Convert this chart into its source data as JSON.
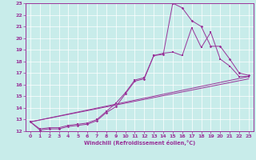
{
  "xlabel": "Windchill (Refroidissement éolien,°C)",
  "bg_color": "#c8ecea",
  "line_color": "#993399",
  "grid_color": "#ffffff",
  "xlim": [
    -0.5,
    23.5
  ],
  "ylim": [
    12,
    23
  ],
  "xticks": [
    0,
    1,
    2,
    3,
    4,
    5,
    6,
    7,
    8,
    9,
    10,
    11,
    12,
    13,
    14,
    15,
    16,
    17,
    18,
    19,
    20,
    21,
    22,
    23
  ],
  "yticks": [
    12,
    13,
    14,
    15,
    16,
    17,
    18,
    19,
    20,
    21,
    22,
    23
  ],
  "line1_x": [
    0,
    1,
    2,
    3,
    4,
    5,
    6,
    7,
    8,
    9,
    10,
    11,
    12,
    13,
    14,
    15,
    16,
    17,
    18,
    19,
    20,
    21,
    22,
    23
  ],
  "line1_y": [
    12.8,
    12.1,
    12.2,
    12.2,
    12.4,
    12.5,
    12.6,
    12.9,
    13.6,
    14.1,
    15.2,
    16.3,
    16.5,
    18.5,
    18.6,
    23.0,
    22.6,
    21.5,
    21.0,
    19.3,
    19.3,
    18.2,
    17.0,
    16.8
  ],
  "line2_x": [
    0,
    1,
    2,
    3,
    4,
    5,
    6,
    7,
    8,
    9,
    10,
    11,
    12,
    13,
    14,
    15,
    16,
    17,
    18,
    19,
    20,
    21,
    22,
    23
  ],
  "line2_y": [
    12.8,
    12.2,
    12.3,
    12.3,
    12.5,
    12.6,
    12.7,
    13.0,
    13.7,
    14.4,
    15.3,
    16.4,
    16.6,
    18.5,
    18.7,
    18.8,
    18.5,
    20.9,
    19.2,
    20.5,
    18.2,
    17.6,
    16.7,
    16.7
  ],
  "line3_x": [
    0,
    23
  ],
  "line3_y": [
    12.8,
    16.5
  ],
  "line4_x": [
    0,
    23
  ],
  "line4_y": [
    12.8,
    16.7
  ]
}
